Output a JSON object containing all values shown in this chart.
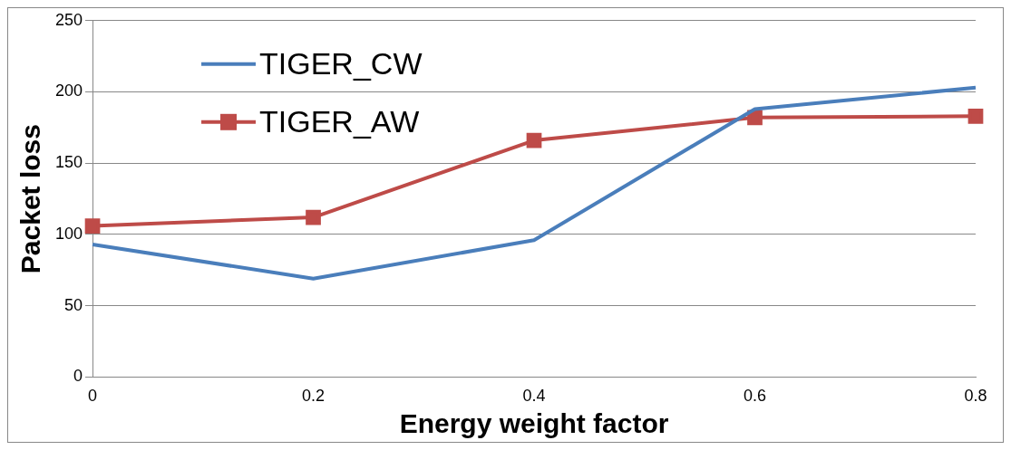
{
  "chart_data": {
    "type": "line",
    "xlabel": "Energy weight factor",
    "ylabel": "Packet loss",
    "categories": [
      "0",
      "0.2",
      "0.4",
      "0.6",
      "0.8"
    ],
    "series": [
      {
        "name": "TIGER_CW",
        "color": "#4a7ebb",
        "values": [
          93,
          69,
          96,
          188,
          203
        ],
        "marker": "none"
      },
      {
        "name": "TIGER_AW",
        "color": "#be4b48",
        "values": [
          106,
          112,
          166,
          182,
          183
        ],
        "marker": "square"
      }
    ],
    "ylim": [
      0,
      250
    ],
    "yticks": [
      0,
      50,
      100,
      150,
      200,
      250
    ],
    "grid": "y",
    "legend": "top left"
  }
}
